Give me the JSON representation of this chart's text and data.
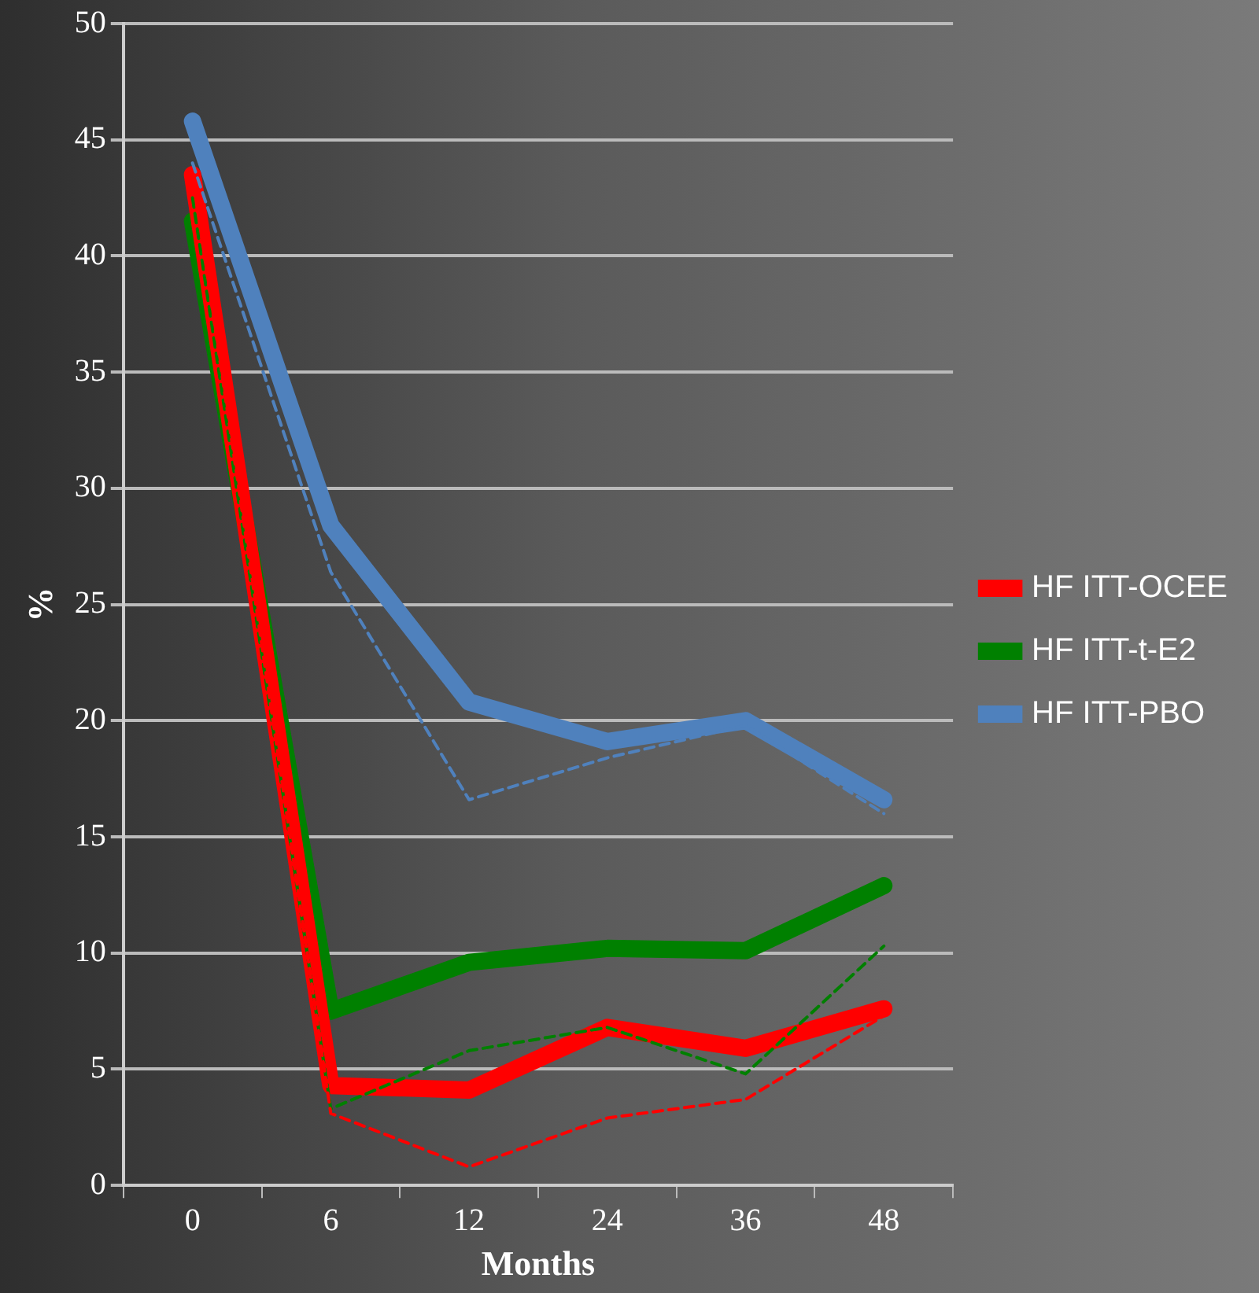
{
  "chart_data": {
    "type": "line",
    "xlabel": "Months",
    "ylabel": "%",
    "categories": [
      "0",
      "6",
      "12",
      "24",
      "36",
      "48"
    ],
    "series": [
      {
        "name": "HF ITT-OCEE",
        "color": "#ff0000",
        "values": [
          43.5,
          4.3,
          4.1,
          6.8,
          5.9,
          7.6
        ]
      },
      {
        "name": "HF ITT-t-E2",
        "color": "#008000",
        "values": [
          41.5,
          7.5,
          9.6,
          10.2,
          10.1,
          12.9
        ]
      },
      {
        "name": "HF ITT-PBO",
        "color": "#4f81bd",
        "values": [
          45.8,
          28.4,
          20.8,
          19.1,
          20.0,
          16.6
        ]
      },
      {
        "color": "#ff0000",
        "line_style": "dashed",
        "values": [
          43.5,
          3.1,
          0.8,
          2.9,
          3.7,
          7.3
        ]
      },
      {
        "color": "#008000",
        "line_style": "dashed",
        "values": [
          42.5,
          3.3,
          5.8,
          6.8,
          4.8,
          10.3
        ]
      },
      {
        "color": "#4f81bd",
        "line_style": "dashed",
        "values": [
          44.0,
          26.4,
          16.6,
          18.4,
          19.8,
          16.0
        ]
      }
    ],
    "ylim": [
      0,
      50
    ],
    "yticks": [
      0,
      5,
      10,
      15,
      20,
      25,
      30,
      35,
      40,
      45,
      50
    ],
    "grid": "y",
    "legend": "right",
    "marker": "none",
    "line_style": "solid"
  }
}
